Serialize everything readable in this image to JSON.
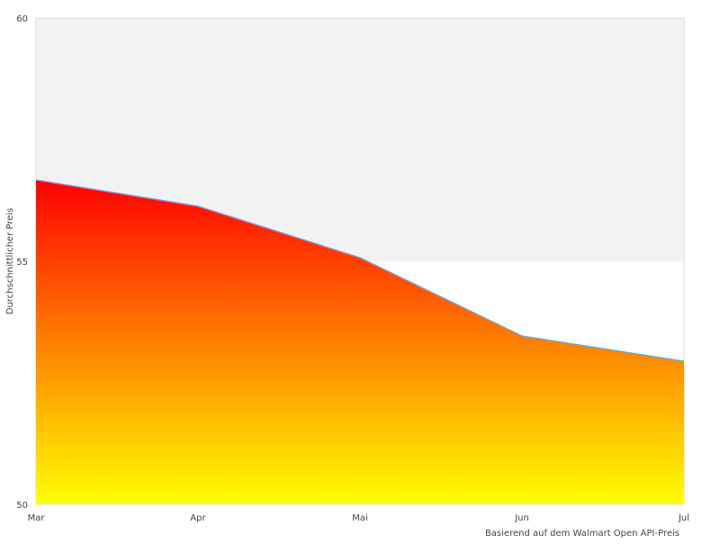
{
  "chart_data": {
    "type": "area",
    "title": "",
    "xlabel": "Basierend auf dem Walmart Open API-Preis",
    "ylabel": "Durchschnittlicher Preis",
    "categories": [
      "Mar",
      "Apr",
      "Mai",
      "Jun",
      "Jul"
    ],
    "values": [
      56.67,
      56.13,
      55.07,
      53.46,
      52.94
    ],
    "ylim": [
      50,
      60
    ],
    "yticks": [
      "50",
      "55",
      "60"
    ],
    "grid": true,
    "colors": {
      "line": "#5aa7f0",
      "fill_top": "#ff0000",
      "fill_bottom": "#ffff00",
      "band": "#f2f2f2",
      "border": "#dddddd"
    }
  }
}
